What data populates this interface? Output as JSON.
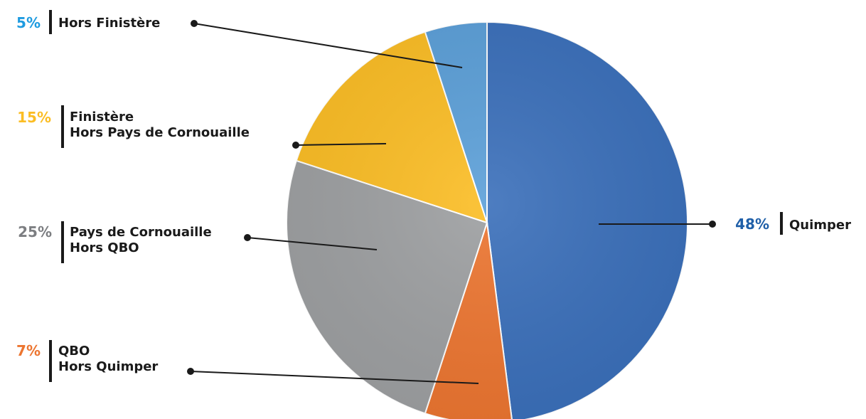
{
  "chart_data": {
    "type": "pie",
    "slices": [
      {
        "percent_label": "48%",
        "label_lines": [
          "Quimper"
        ],
        "value": 48,
        "color": "#3a6fba"
      },
      {
        "percent_label": "7%",
        "label_lines": [
          "QBO",
          "Hors Quimper"
        ],
        "value": 7,
        "color": "#ec7530"
      },
      {
        "percent_label": "25%",
        "label_lines": [
          "Pays de Cornouaille",
          "Hors QBO"
        ],
        "value": 25,
        "color": "#9d9fa1"
      },
      {
        "percent_label": "15%",
        "label_lines": [
          "Finistère",
          "Hors Pays de Cornouaille"
        ],
        "value": 15,
        "color": "#fbbd24"
      },
      {
        "percent_label": "5%",
        "label_lines": [
          "Hors Finistère"
        ],
        "value": 5,
        "color": "#5b9fd8"
      }
    ],
    "percent_label_colors": [
      "#1f5fa8",
      "#ec7530",
      "#7c7e81",
      "#fbbd24",
      "#1e9be0"
    ],
    "start_angle": "12 o'clock",
    "direction": "clockwise",
    "legend": "none"
  }
}
